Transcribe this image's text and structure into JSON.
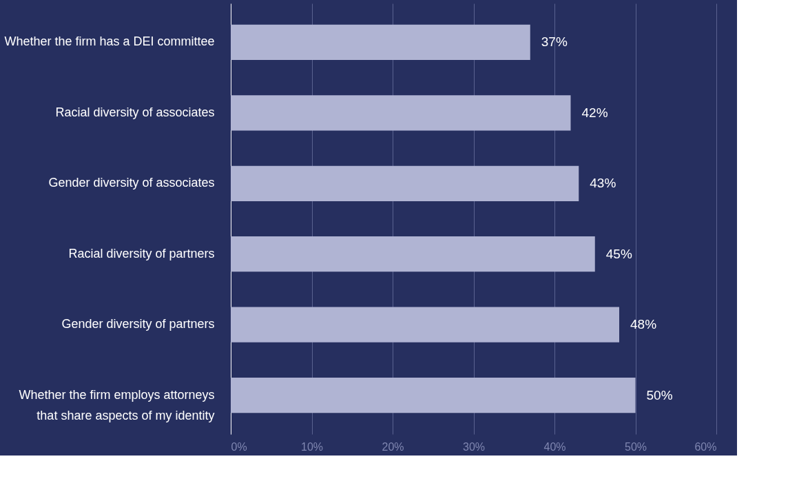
{
  "chart_data": {
    "type": "bar",
    "orientation": "horizontal",
    "categories": [
      "Whether the firm has a DEI committee",
      "Racial diversity of associates",
      "Gender diversity of associates",
      "Racial diversity of partners",
      "Gender diversity of partners",
      "Whether the firm employs attorneys\nthat share aspects of my identity"
    ],
    "values": [
      37,
      42,
      43,
      45,
      48,
      50
    ],
    "value_labels": [
      "37%",
      "42%",
      "43%",
      "45%",
      "48%",
      "50%"
    ],
    "color": "#b0b4d3",
    "xlim": [
      0,
      60
    ],
    "xticks": [
      {
        "value": 0,
        "label": "0%"
      },
      {
        "value": 10,
        "label": "10%"
      },
      {
        "value": 20,
        "label": "20%"
      },
      {
        "value": 30,
        "label": "30%"
      },
      {
        "value": 40,
        "label": "40%"
      },
      {
        "value": 50,
        "label": "50%"
      },
      {
        "value": 60,
        "label": "60%"
      }
    ],
    "grid": "x"
  }
}
